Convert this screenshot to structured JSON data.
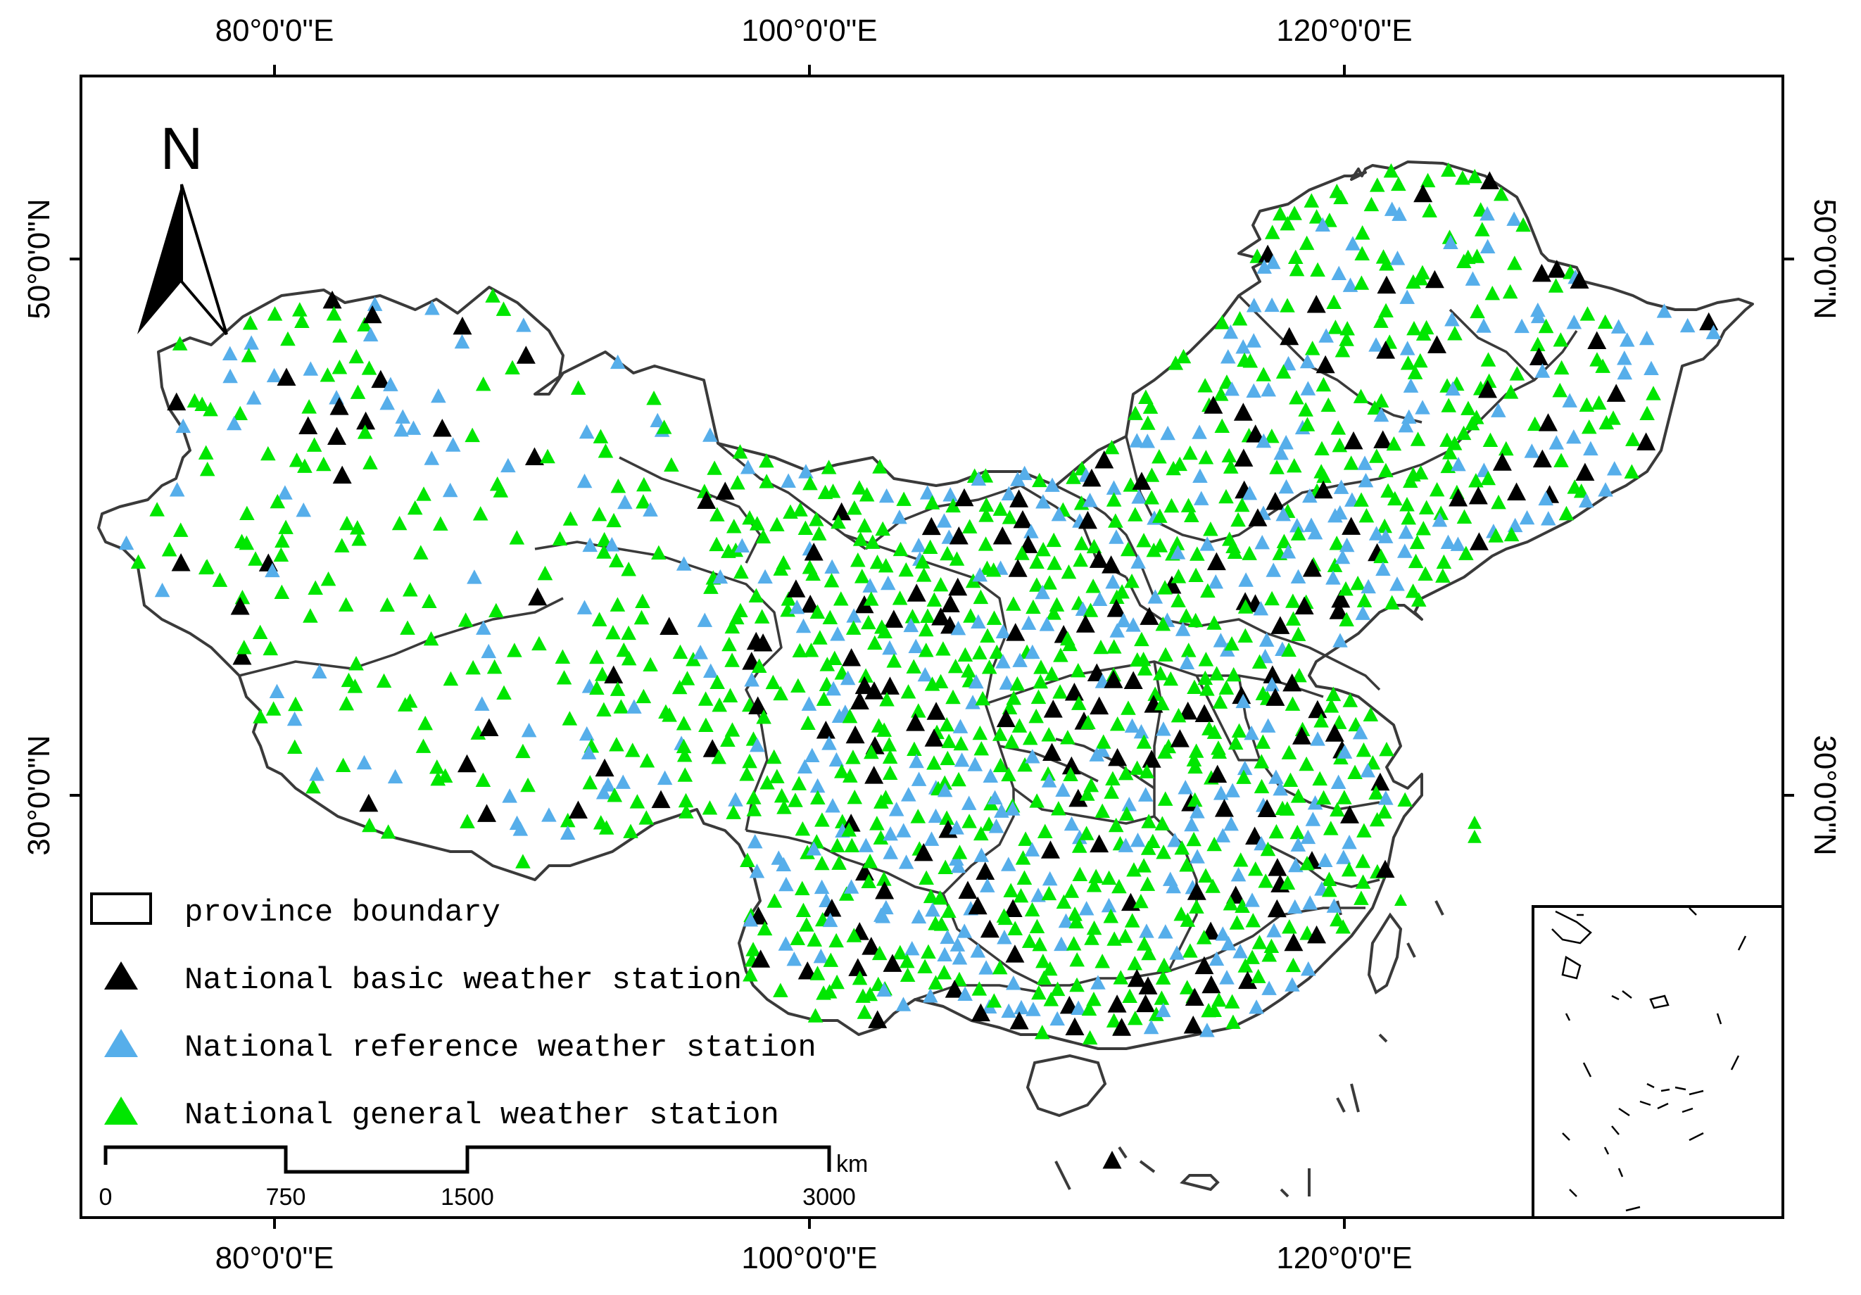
{
  "map": {
    "lon_labels": [
      "80°0'0\"E",
      "100°0'0\"E",
      "120°0'0\"E"
    ],
    "lat_labels": [
      "50°0'0\"N",
      "30°0'0\"N"
    ],
    "north_label": "N",
    "legend": {
      "items": [
        {
          "label": "province boundary",
          "symbol": "rectangle"
        },
        {
          "label": "National basic weather station",
          "symbol": "triangle",
          "color": "#000000"
        },
        {
          "label": "National reference weather station",
          "symbol": "triangle",
          "color": "#56AEEA"
        },
        {
          "label": "National general weather station",
          "symbol": "triangle",
          "color": "#00E600"
        }
      ]
    },
    "scale_bar": {
      "unit": "km",
      "labels": [
        "0",
        "750",
        "1500",
        "3000"
      ]
    },
    "colors": {
      "basic": "#000000",
      "reference": "#56AEEA",
      "general": "#00E600",
      "boundary": "#404040"
    }
  }
}
